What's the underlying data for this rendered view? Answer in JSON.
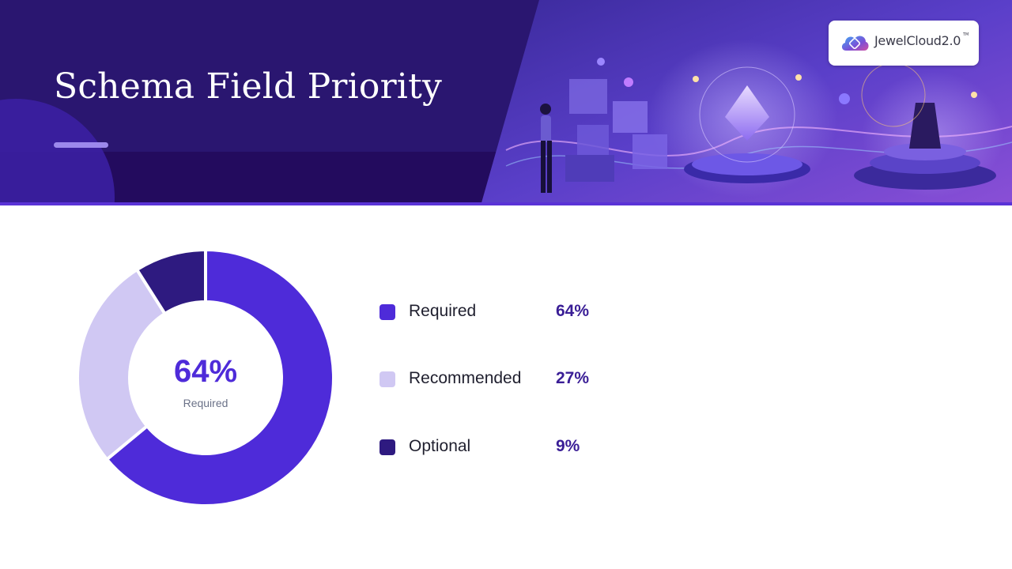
{
  "slide": {
    "title": "Schema Field Priority"
  },
  "logo": {
    "brand": "JewelCloud2.0",
    "trademark": "TM"
  },
  "colors": {
    "header_bg": "#2a1670",
    "accent": "#4e2bd9",
    "recommended": "#d0c8f3",
    "optional": "#2e1a80",
    "title_accent": "#9c88ec"
  },
  "chart_data": {
    "type": "pie",
    "style": "donut",
    "center_value": "64%",
    "center_label": "Required",
    "legend_placement": "right",
    "categories": [
      "Required",
      "Recommended",
      "Optional"
    ],
    "values": [
      64,
      27,
      9
    ],
    "value_labels": [
      "64%",
      "27%",
      "9%"
    ],
    "colors": [
      "#4e2bd9",
      "#d0c8f3",
      "#2e1a80"
    ]
  }
}
